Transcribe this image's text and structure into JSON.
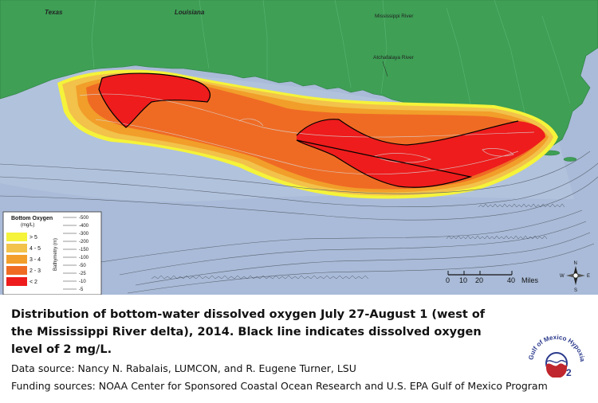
{
  "map": {
    "labels": {
      "texas": "Texas",
      "louisiana": "Louisiana",
      "mississippi_river": "Mississippi River",
      "atchafalaya_river": "Atchafalaya River"
    },
    "legend": {
      "title_line1": "Bottom Oxygen",
      "title_line2": "(mg/L)",
      "classes": [
        {
          "label": "> 5",
          "color": "#f5f33a"
        },
        {
          "label": "4 - 5",
          "color": "#f2c24a"
        },
        {
          "label": "3 - 4",
          "color": "#f29e2a"
        },
        {
          "label": "2 - 3",
          "color": "#ef6b24"
        },
        {
          "label": "< 2",
          "color": "#ee1c1c"
        }
      ],
      "bathymetry_title": "Bathymetry (m)",
      "bathymetry_levels": [
        "-500",
        "-400",
        "-300",
        "-200",
        "-150",
        "-100",
        "-50",
        "-25",
        "-10",
        "-5"
      ]
    },
    "scale": {
      "ticks": [
        "0",
        "10",
        "20",
        "40"
      ],
      "unit": "Miles"
    },
    "compass": {
      "n": "N",
      "s": "S",
      "e": "E",
      "w": "W"
    },
    "colors": {
      "water": "#a9bbd8",
      "land": "#3e9f55",
      "threshold_line": "#000000"
    }
  },
  "caption": "Distribution of bottom-water dissolved oxygen July 27-August 1 (west of the Mississippi River delta), 2014. Black line indicates dissolved oxygen level of 2 mg/L.",
  "sources": {
    "data": "Data source: Nancy N. Rabalais, LUMCON, and R. Eugene Turner, LSU",
    "funding": "Funding sources: NOAA Center for Sponsored Coastal Ocean Research  and U.S. EPA Gulf of Mexico Program"
  },
  "logo": {
    "text": "Gulf of Mexico Hypoxia",
    "symbol": "O",
    "subscript": "2"
  }
}
